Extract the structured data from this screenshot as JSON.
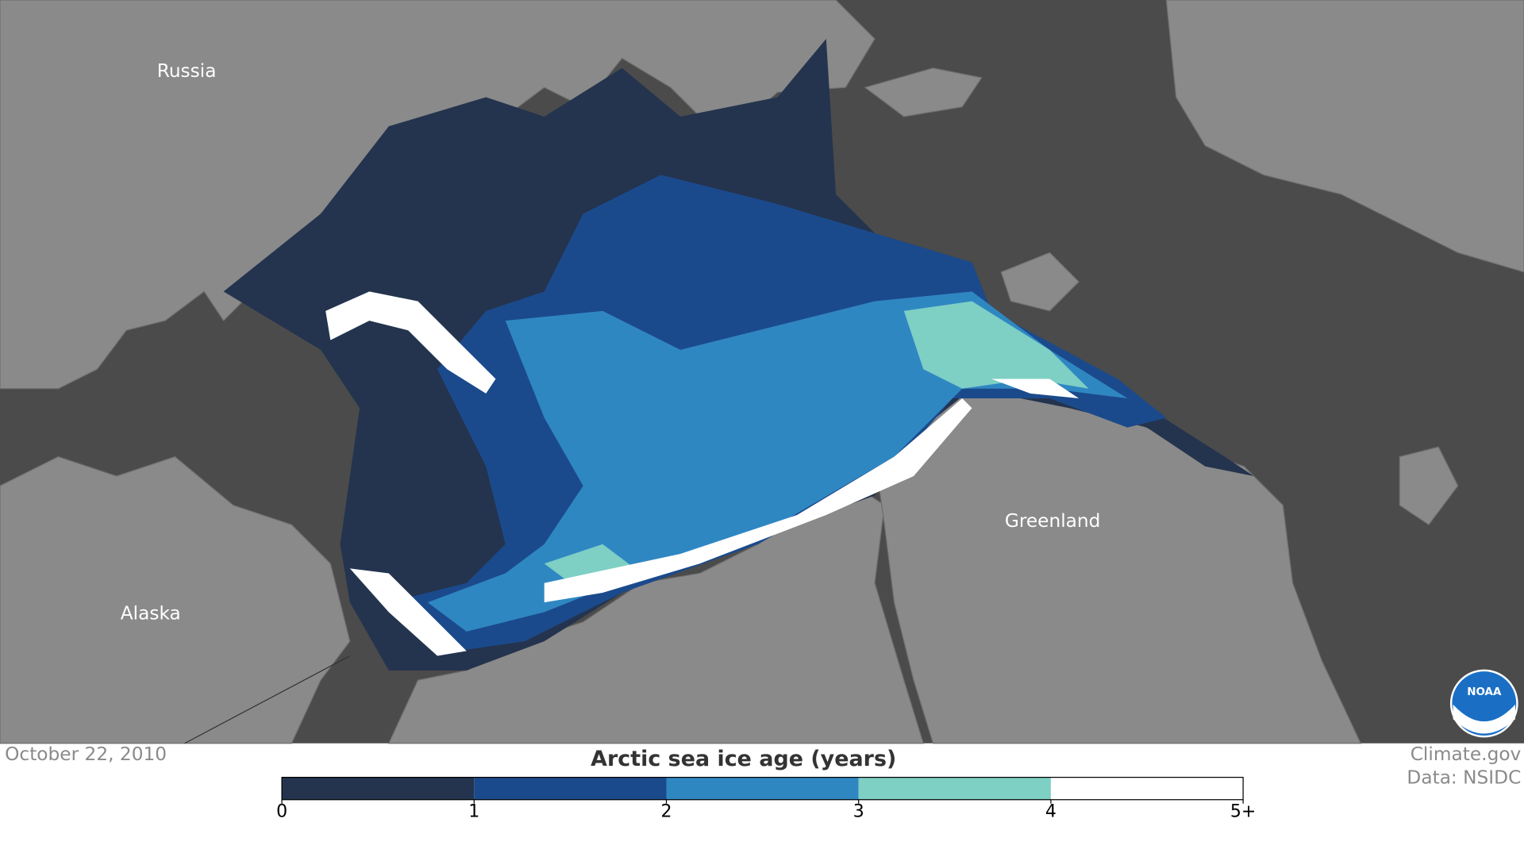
{
  "map": {
    "place_labels": [
      "Russia",
      "Alaska",
      "Greenland"
    ],
    "date": "October 22, 2010",
    "legend": {
      "title": "Arctic sea ice age (years)",
      "colors": [
        "#24344e",
        "#1b4a8c",
        "#2f87c2",
        "#7ecfc4",
        "#ffffff"
      ],
      "ticks": [
        0,
        1,
        2,
        3,
        4,
        {
          "value": 5,
          "label": "5+"
        }
      ]
    },
    "credits": [
      "Climate.gov",
      "Data: NSIDC"
    ],
    "logo": "NOAA"
  }
}
